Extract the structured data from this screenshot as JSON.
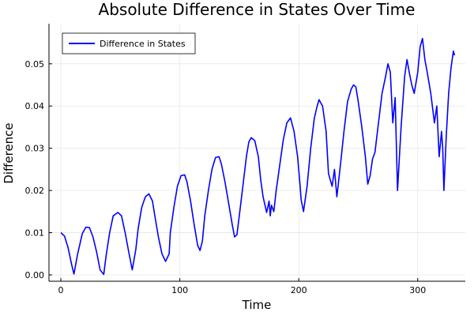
{
  "chart_data": {
    "type": "line",
    "title": "Absolute Difference in States Over Time",
    "xlabel": "Time",
    "ylabel": "Difference",
    "xlim": [
      -10,
      340
    ],
    "ylim": [
      -0.0015,
      0.0595
    ],
    "xticks": [
      0,
      100,
      200,
      300
    ],
    "yticks": [
      0.0,
      0.01,
      0.02,
      0.03,
      0.04,
      0.05
    ],
    "ytick_labels": [
      "0.00",
      "0.01",
      "0.02",
      "0.03",
      "0.04",
      "0.05"
    ],
    "grid": true,
    "legend_position": "top-left",
    "series": [
      {
        "name": "Difference in States",
        "color": "#0000ff",
        "x": [
          0,
          3,
          6,
          9,
          11,
          14,
          18,
          21,
          24,
          27,
          30,
          33,
          36,
          38,
          41,
          44,
          48,
          51,
          54,
          57,
          60,
          63,
          65,
          68,
          71,
          74,
          77,
          79,
          82,
          85,
          88,
          91,
          92,
          95,
          98,
          101,
          104,
          106,
          109,
          112,
          115,
          117,
          119,
          121,
          124,
          127,
          130,
          133,
          135,
          138,
          141,
          144,
          146,
          148,
          150,
          153,
          156,
          158,
          160,
          163,
          166,
          168,
          170,
          173,
          175,
          176,
          177,
          179,
          181,
          184,
          187,
          190,
          193,
          196,
          199,
          201,
          202,
          204,
          207,
          210,
          213,
          215,
          217,
          220,
          223,
          225,
          228,
          230,
          232,
          235,
          238,
          241,
          244,
          246,
          248,
          250,
          253,
          256,
          258,
          260,
          262,
          264,
          267,
          270,
          273,
          275,
          277,
          279,
          281,
          283,
          286,
          289,
          291,
          293,
          295,
          297,
          300,
          302,
          304,
          306,
          308,
          311,
          314,
          316,
          318,
          320,
          321,
          322,
          324,
          326,
          328,
          330,
          331
        ],
        "values": [
          0.01,
          0.0092,
          0.0065,
          0.0025,
          0.0002,
          0.0048,
          0.0098,
          0.0113,
          0.0112,
          0.009,
          0.0055,
          0.0012,
          0.0001,
          0.0045,
          0.01,
          0.014,
          0.0148,
          0.014,
          0.01,
          0.0055,
          0.0012,
          0.006,
          0.011,
          0.016,
          0.0185,
          0.0192,
          0.0175,
          0.014,
          0.009,
          0.005,
          0.0032,
          0.005,
          0.01,
          0.016,
          0.021,
          0.0235,
          0.0237,
          0.022,
          0.0175,
          0.012,
          0.007,
          0.0058,
          0.008,
          0.014,
          0.02,
          0.025,
          0.0278,
          0.028,
          0.0262,
          0.022,
          0.017,
          0.012,
          0.009,
          0.0095,
          0.014,
          0.021,
          0.028,
          0.0315,
          0.0325,
          0.0318,
          0.028,
          0.0225,
          0.0185,
          0.0148,
          0.0175,
          0.014,
          0.0165,
          0.015,
          0.02,
          0.026,
          0.032,
          0.036,
          0.0372,
          0.034,
          0.028,
          0.0215,
          0.0178,
          0.015,
          0.021,
          0.03,
          0.037,
          0.0395,
          0.0415,
          0.04,
          0.034,
          0.024,
          0.021,
          0.025,
          0.0185,
          0.026,
          0.034,
          0.041,
          0.044,
          0.045,
          0.0445,
          0.041,
          0.035,
          0.028,
          0.0215,
          0.0235,
          0.0275,
          0.029,
          0.036,
          0.043,
          0.047,
          0.05,
          0.048,
          0.036,
          0.042,
          0.02,
          0.035,
          0.047,
          0.051,
          0.0478,
          0.045,
          0.043,
          0.048,
          0.054,
          0.056,
          0.051,
          0.048,
          0.043,
          0.036,
          0.04,
          0.028,
          0.034,
          0.03,
          0.02,
          0.033,
          0.043,
          0.049,
          0.053,
          0.052
        ]
      }
    ]
  }
}
